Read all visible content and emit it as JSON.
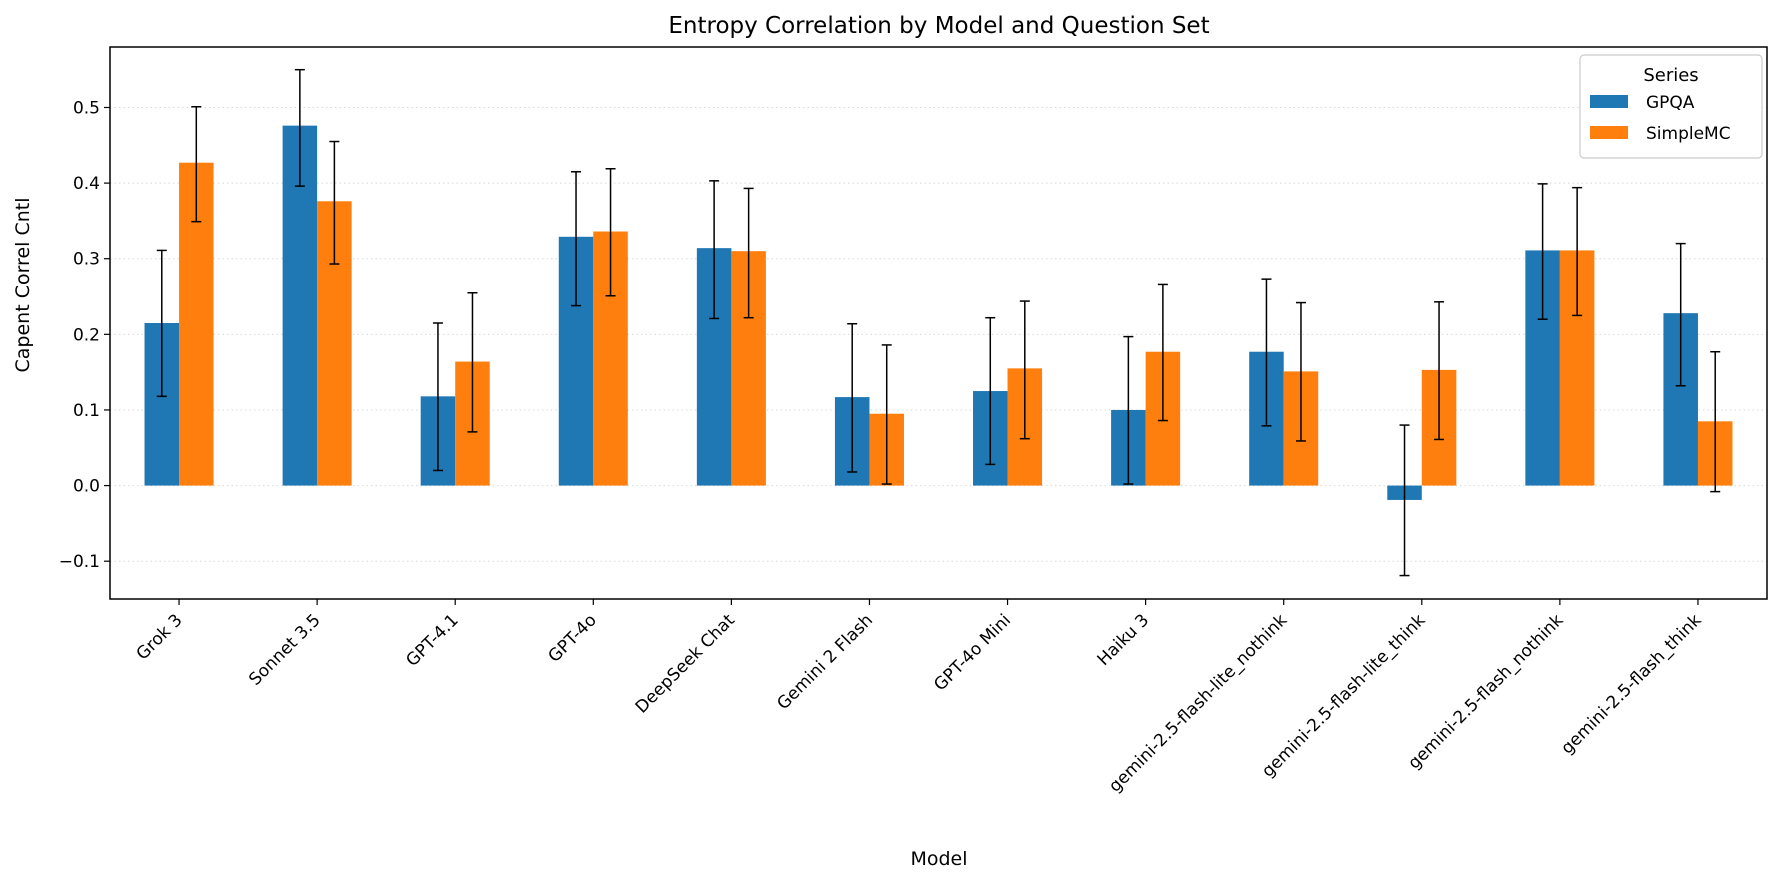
{
  "chart_data": {
    "type": "bar",
    "title": "Entropy Correlation by Model and Question Set",
    "xlabel": "Model",
    "ylabel": "Capent Correl Cntl",
    "ylim": [
      -0.15,
      0.58
    ],
    "yticks": [
      -0.1,
      0.0,
      0.1,
      0.2,
      0.3,
      0.4,
      0.5
    ],
    "ytick_labels": [
      "−0.1",
      "0.0",
      "0.1",
      "0.2",
      "0.3",
      "0.4",
      "0.5"
    ],
    "grid": "y dotted",
    "legend": {
      "title": "Series",
      "placement": "top-right"
    },
    "categories": [
      "Grok 3",
      "Sonnet 3.5",
      "GPT-4.1",
      "GPT-4o",
      "DeepSeek Chat",
      "Gemini 2 Flash",
      "GPT-4o Mini",
      "Haiku 3",
      "gemini-2.5-flash-lite_nothink",
      "gemini-2.5-flash-lite_think",
      "gemini-2.5-flash_nothink",
      "gemini-2.5-flash_think"
    ],
    "series": [
      {
        "name": "GPQA",
        "color": "#1f77b4",
        "values": [
          0.215,
          0.476,
          0.118,
          0.329,
          0.314,
          0.117,
          0.125,
          0.1,
          0.177,
          -0.019,
          0.311,
          0.228
        ],
        "err_low": [
          0.118,
          0.396,
          0.02,
          0.238,
          0.221,
          0.018,
          0.028,
          0.002,
          0.079,
          -0.119,
          0.22,
          0.132
        ],
        "err_high": [
          0.311,
          0.55,
          0.215,
          0.415,
          0.403,
          0.214,
          0.222,
          0.197,
          0.273,
          0.08,
          0.399,
          0.32
        ]
      },
      {
        "name": "SimpleMC",
        "color": "#ff7f0e",
        "values": [
          0.427,
          0.376,
          0.164,
          0.336,
          0.31,
          0.095,
          0.155,
          0.177,
          0.151,
          0.153,
          0.311,
          0.085
        ],
        "err_low": [
          0.349,
          0.293,
          0.071,
          0.251,
          0.222,
          0.002,
          0.062,
          0.086,
          0.059,
          0.061,
          0.225,
          -0.008
        ],
        "err_high": [
          0.501,
          0.455,
          0.255,
          0.419,
          0.393,
          0.186,
          0.244,
          0.266,
          0.242,
          0.243,
          0.394,
          0.177
        ]
      }
    ]
  }
}
